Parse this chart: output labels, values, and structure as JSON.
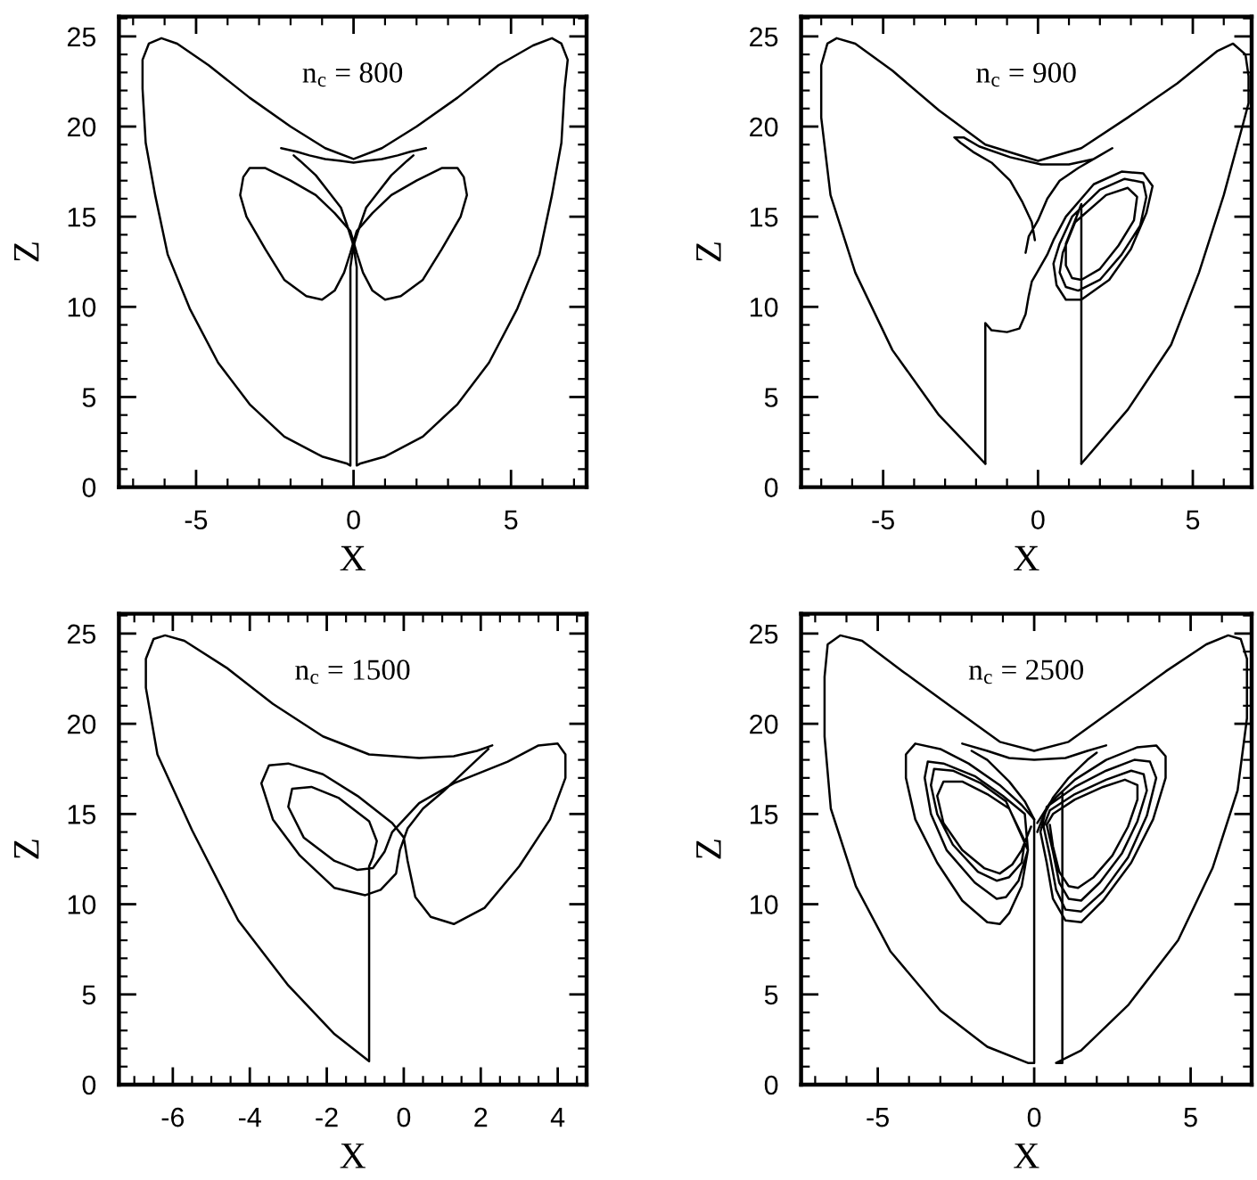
{
  "chart_data": [
    {
      "type": "line",
      "title": "n$_{c}$ = 800",
      "xlabel": "X",
      "ylabel": "Z",
      "xlim": [
        -7.45,
        7.4
      ],
      "ylim": [
        0,
        26.1
      ],
      "xticks": [
        -5,
        0,
        5
      ],
      "yticks": [
        0,
        5,
        10,
        15,
        20,
        25
      ],
      "series": [
        {
          "color": "#000000",
          "x": [
            -1.9,
            -1.7,
            -1.2,
            -0.8,
            -0.4,
            -0.2,
            0.0,
            0.1,
            0.1,
            0.1,
            0.2,
            1.0,
            2.2,
            3.3,
            4.3,
            5.2,
            5.9,
            6.3,
            6.6,
            6.7,
            6.8,
            6.6,
            6.3,
            5.7,
            4.6,
            3.3,
            2.0,
            0.9,
            0,
            -0.9,
            -2.0,
            -3.3,
            -4.6,
            -5.6,
            -6.1,
            -6.5,
            -6.7,
            -6.7,
            -6.6,
            -6.3,
            -5.9,
            -5.2,
            -4.3,
            -3.3,
            -2.2,
            -1.0,
            -0.2,
            -0.1,
            -0.1,
            -0.1,
            0.0,
            0.2,
            0.4,
            0.8,
            1.2,
            1.7,
            1.9
          ],
          "values": [
            18.4,
            18.1,
            17.3,
            16.4,
            15.5,
            14.5,
            13.4,
            12.2,
            11.0,
            1.2,
            1.3,
            1.7,
            2.8,
            4.6,
            6.9,
            9.9,
            12.9,
            16.2,
            19.1,
            22.1,
            23.7,
            24.6,
            24.9,
            24.5,
            23.4,
            21.6,
            20.0,
            18.8,
            18.2,
            18.8,
            20.0,
            21.6,
            23.4,
            24.6,
            24.9,
            24.6,
            23.7,
            22.1,
            19.1,
            16.2,
            12.9,
            9.9,
            6.9,
            4.6,
            2.8,
            1.7,
            1.3,
            1.2,
            11.0,
            12.2,
            13.4,
            14.5,
            15.5,
            16.4,
            17.3,
            18.1,
            18.4
          ]
        },
        {
          "color": "#000000",
          "x": [
            -2.3,
            -1.8,
            -1.4,
            -0.9,
            -0.4,
            0,
            0.4,
            0.9,
            1.4,
            1.8,
            2.3
          ],
          "values": [
            18.8,
            18.6,
            18.4,
            18.2,
            18.1,
            18.0,
            18.1,
            18.2,
            18.4,
            18.6,
            18.8
          ]
        },
        {
          "color": "#000000",
          "x": [
            -1.0,
            -1.5,
            -2.2,
            -2.8,
            -3.4,
            -3.6,
            -3.5,
            -3.3,
            -2.8,
            -2.0,
            -1.2,
            -0.6,
            -0.1,
            0.1,
            0.3,
            0.6,
            1.0,
            1.5,
            2.2,
            2.8,
            3.4,
            3.6,
            3.5,
            3.3,
            2.8,
            2.0,
            1.2,
            0.6,
            0.1,
            -0.1,
            -0.3,
            -0.6,
            -1.0,
            -1.5
          ],
          "values": [
            10.4,
            10.6,
            11.5,
            13.2,
            15.0,
            16.2,
            17.2,
            17.7,
            17.7,
            17.0,
            16.2,
            15.2,
            14.2,
            13.0,
            11.9,
            10.9,
            10.4,
            10.6,
            11.5,
            13.2,
            15.0,
            16.2,
            17.2,
            17.7,
            17.7,
            17.0,
            16.2,
            15.2,
            14.2,
            13.0,
            11.9,
            10.9,
            10.4,
            10.6
          ]
        }
      ]
    },
    {
      "type": "line",
      "title": "n$_{c}$ = 900",
      "xlabel": "X",
      "ylabel": "Z",
      "xlim": [
        -7.65,
        6.9
      ],
      "ylim": [
        0,
        26.1
      ],
      "xticks": [
        -5,
        0,
        5
      ],
      "yticks": [
        0,
        5,
        10,
        15,
        20,
        25
      ],
      "series": [
        {
          "color": "#000000",
          "x": [
            -1.7,
            -3.2,
            -4.7,
            -5.9,
            -6.7,
            -7.0,
            -7.0,
            -6.8,
            -6.5,
            -5.9,
            -4.7,
            -3.2,
            -1.7,
            0,
            1.4,
            2.9,
            4.5,
            5.8,
            6.3,
            6.7,
            6.8,
            6.8,
            6.6,
            6.0,
            5.2,
            4.3,
            2.9,
            1.4
          ],
          "values": [
            1.3,
            4.0,
            7.6,
            11.9,
            16.2,
            20.5,
            23.4,
            24.6,
            24.9,
            24.6,
            23.1,
            20.9,
            19.0,
            18.1,
            18.8,
            20.5,
            22.4,
            24.2,
            24.6,
            24.0,
            22.8,
            21.3,
            20.0,
            16.2,
            11.9,
            7.9,
            4.3,
            1.3
          ]
        },
        {
          "color": "#000000",
          "x": [
            -1.7,
            -1.7,
            -1.5,
            -1.0,
            -0.6,
            -0.4,
            -0.3,
            -0.2,
            0.0,
            0.3,
            0.5,
            0.9,
            1.8,
            2.7,
            3.4,
            3.7,
            3.5,
            3.0,
            2.3,
            1.4,
            0.9,
            0.6,
            0.5,
            0.7,
            1.1,
            2.0,
            2.8,
            3.4,
            3.5,
            3.3,
            2.7,
            2.0,
            1.3,
            0.9,
            0.7,
            0.8,
            1.2,
            2.2,
            2.9,
            3.2,
            3.1,
            2.6,
            2.0,
            1.4,
            1.1,
            0.9,
            0.9,
            1.2,
            1.4,
            1.4
          ],
          "values": [
            1.3,
            9.1,
            8.7,
            8.6,
            8.8,
            9.6,
            10.6,
            11.4,
            12.0,
            12.9,
            13.7,
            15.0,
            16.8,
            17.5,
            17.4,
            16.7,
            15.2,
            13.2,
            11.5,
            10.4,
            10.4,
            11.2,
            12.4,
            13.5,
            15.0,
            16.5,
            17.1,
            16.9,
            16.1,
            14.5,
            12.9,
            11.5,
            10.9,
            11.1,
            11.9,
            13.0,
            14.7,
            16.2,
            16.6,
            16.1,
            14.8,
            13.4,
            12.1,
            11.5,
            11.6,
            12.3,
            13.5,
            14.8,
            15.7,
            1.3
          ]
        },
        {
          "color": "#000000",
          "x": [
            -0.1,
            -0.2,
            -0.5,
            -0.9,
            -1.5,
            -2.1,
            -2.5,
            -2.7,
            -2.4,
            -1.9,
            -0.9,
            0.1,
            1.0,
            1.8,
            2.4,
            2.0,
            1.3,
            0.7,
            0.3,
            0.0,
            -0.3,
            -0.4
          ],
          "values": [
            13.7,
            14.7,
            15.8,
            17.0,
            18.0,
            18.6,
            19.1,
            19.4,
            19.4,
            18.9,
            18.3,
            17.9,
            17.9,
            18.2,
            18.8,
            18.4,
            17.7,
            17.0,
            16.0,
            14.8,
            13.9,
            13.0
          ]
        }
      ]
    },
    {
      "type": "line",
      "title": "n$_{c}$ = 1500",
      "xlabel": "X",
      "ylabel": "Z",
      "xlim": [
        -7.4,
        4.75
      ],
      "ylim": [
        0,
        26.1
      ],
      "xticks": [
        -6,
        -4,
        -2,
        0,
        2,
        4
      ],
      "yticks": [
        0,
        5,
        10,
        15,
        20,
        25
      ],
      "series": [
        {
          "color": "#000000",
          "x": [
            2.3,
            1.9,
            1.3,
            0.4,
            -0.9,
            -2.1,
            -3.4,
            -4.6,
            -5.7,
            -6.2,
            -6.5,
            -6.7,
            -6.7,
            -6.4,
            -5.5,
            -4.3,
            -3.0,
            -1.8,
            -0.9,
            -0.9,
            -0.8,
            -0.7,
            -0.9,
            -1.7,
            -2.4,
            -2.9,
            -3.0,
            -2.6,
            -1.8,
            -1.2,
            -0.8,
            -0.5,
            -0.3,
            0.4,
            1.3,
            2.7,
            3.5,
            4.0,
            4.2,
            4.2,
            3.8,
            3.0,
            2.1,
            1.3,
            0.7,
            0.3,
            0.1,
            0.0,
            -0.3,
            -1.2,
            -2.1,
            -3.0,
            -3.5,
            -3.7,
            -3.4,
            -2.7,
            -1.8,
            -1.0,
            -0.6,
            -0.2,
            -0.1,
            0.1,
            0.5,
            1.0,
            1.7,
            2.2
          ],
          "values": [
            18.8,
            18.5,
            18.2,
            18.1,
            18.3,
            19.3,
            21.1,
            23.1,
            24.6,
            24.9,
            24.7,
            23.6,
            22.0,
            18.3,
            14.1,
            9.1,
            5.5,
            2.8,
            1.3,
            12.1,
            12.6,
            13.5,
            14.6,
            15.9,
            16.5,
            16.4,
            15.4,
            13.7,
            12.4,
            11.9,
            12.0,
            12.9,
            14.0,
            15.6,
            16.7,
            17.9,
            18.8,
            18.9,
            18.3,
            17.0,
            14.7,
            12.1,
            9.8,
            8.9,
            9.3,
            10.4,
            12.4,
            13.7,
            14.5,
            16.0,
            17.2,
            17.8,
            17.7,
            16.7,
            14.7,
            12.7,
            10.9,
            10.5,
            10.8,
            11.7,
            13.0,
            14.2,
            15.3,
            16.2,
            17.6,
            18.6
          ]
        }
      ]
    },
    {
      "type": "line",
      "title": "n$_{c}$ = 2500",
      "xlabel": "X",
      "ylabel": "Z",
      "xlim": [
        -7.45,
        6.95
      ],
      "ylim": [
        0,
        26.1
      ],
      "xticks": [
        -5,
        0,
        5
      ],
      "yticks": [
        0,
        5,
        10,
        15,
        20,
        25
      ],
      "series": [
        {
          "color": "#000000",
          "x": [
            -2.0,
            -1.5,
            -0.8,
            -0.3,
            0.0,
            0.0,
            0.0,
            -0.2,
            -1.5,
            -3.0,
            -4.6,
            -5.7,
            -6.5,
            -6.7,
            -6.7,
            -6.6,
            -6.2,
            -5.5,
            -4.2,
            -2.7,
            -1.1,
            0,
            1.1,
            2.7,
            4.2,
            5.5,
            6.2,
            6.6,
            6.8,
            6.8,
            6.5,
            5.7,
            4.6,
            3.0,
            1.5,
            0.7,
            0.9,
            0.9
          ],
          "values": [
            18.5,
            18.0,
            16.8,
            15.7,
            14.7,
            13.5,
            1.2,
            1.2,
            2.1,
            4.1,
            7.4,
            11.0,
            15.3,
            19.3,
            22.6,
            24.4,
            24.9,
            24.6,
            22.9,
            21.0,
            19.0,
            18.5,
            19.0,
            21.0,
            22.9,
            24.4,
            24.9,
            24.7,
            23.6,
            20.3,
            16.3,
            12.0,
            8.0,
            4.4,
            1.9,
            1.2,
            1.2,
            16.2
          ]
        },
        {
          "color": "#000000",
          "x": [
            -2.3,
            -1.5,
            -0.8,
            0,
            1.0,
            1.7,
            2.3
          ],
          "values": [
            18.9,
            18.5,
            18.1,
            18.0,
            18.1,
            18.5,
            18.8
          ]
        },
        {
          "color": "#000000",
          "x": [
            2.0,
            1.7,
            1.1,
            0.6,
            0.3,
            0.1
          ],
          "values": [
            18.4,
            18.0,
            17.0,
            15.9,
            14.9,
            14.0
          ]
        },
        {
          "color": "#000000",
          "x": [
            0.0,
            -0.4,
            -1.1,
            -2.1,
            -3.0,
            -3.8,
            -4.1,
            -4.1,
            -3.8,
            -3.1,
            -2.3,
            -1.5,
            -1.1,
            -0.8,
            -0.4,
            -0.2,
            -0.3,
            -1.0,
            -1.9,
            -2.9,
            -3.4,
            -3.5,
            -3.3,
            -2.8,
            -1.9,
            -1.2,
            -0.9,
            -0.5,
            -0.2,
            -0.9,
            -1.7,
            -2.6,
            -3.2,
            -3.3,
            -3.1,
            -2.6,
            -1.8,
            -1.2,
            -0.8,
            -0.4,
            -0.3,
            -0.8,
            -1.5,
            -2.3,
            -2.9,
            -3.1,
            -2.9,
            -2.3,
            -1.6,
            -1.1,
            -0.7,
            -0.4,
            -0.1
          ],
          "values": [
            14.7,
            15.5,
            16.6,
            17.8,
            18.6,
            18.9,
            18.3,
            17.0,
            14.7,
            12.3,
            10.2,
            9.0,
            8.9,
            9.5,
            11.0,
            13.0,
            15.0,
            16.0,
            17.1,
            17.8,
            17.9,
            17.0,
            15.0,
            13.0,
            11.2,
            10.3,
            10.4,
            11.3,
            13.0,
            15.7,
            16.7,
            17.4,
            17.5,
            16.6,
            15.0,
            13.3,
            11.8,
            11.3,
            11.5,
            12.3,
            13.5,
            15.3,
            16.1,
            16.8,
            16.8,
            16.0,
            14.5,
            13.0,
            12.0,
            11.7,
            12.2,
            13.0,
            14.3
          ]
        },
        {
          "color": "#000000",
          "x": [
            0.1,
            0.5,
            1.3,
            2.3,
            3.3,
            3.9,
            4.2,
            4.2,
            3.8,
            3.1,
            2.2,
            1.5,
            1.0,
            0.6,
            0.4,
            0.2,
            0.4,
            1.3,
            2.3,
            3.2,
            3.7,
            3.9,
            3.6,
            3.0,
            2.2,
            1.5,
            1.0,
            0.7,
            0.5,
            0.3,
            0.5,
            1.3,
            2.3,
            3.1,
            3.5,
            3.6,
            3.3,
            2.8,
            2.1,
            1.5,
            1.1,
            0.8,
            0.6,
            0.4,
            0.6,
            1.3,
            2.2,
            2.9,
            3.3,
            3.3,
            3.0,
            2.5,
            1.9,
            1.4,
            1.1,
            0.8,
            0.6,
            0.5
          ],
          "values": [
            14.5,
            15.6,
            16.9,
            18.0,
            18.7,
            18.8,
            18.2,
            17.0,
            14.7,
            12.3,
            10.2,
            9.0,
            9.1,
            10.3,
            12.3,
            14.0,
            15.4,
            16.5,
            17.4,
            18.0,
            17.9,
            17.0,
            14.9,
            12.6,
            10.7,
            9.6,
            9.7,
            10.8,
            12.7,
            14.3,
            15.2,
            16.1,
            16.9,
            17.4,
            17.2,
            16.3,
            14.6,
            12.8,
            11.2,
            10.2,
            10.3,
            11.2,
            12.9,
            14.4,
            15.0,
            15.8,
            16.5,
            16.9,
            16.6,
            15.8,
            14.3,
            12.7,
            11.5,
            10.9,
            11.0,
            11.8,
            13.2,
            14.4
          ]
        }
      ]
    }
  ]
}
